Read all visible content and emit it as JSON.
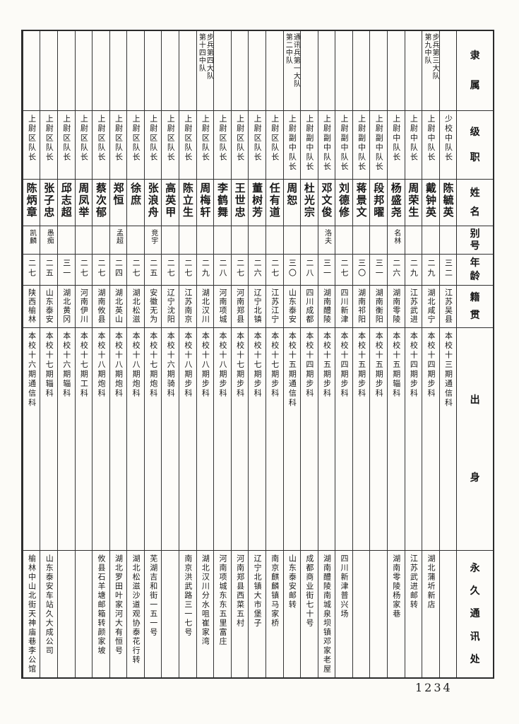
{
  "page": {
    "number": "1234",
    "ink_color": "#191919",
    "paper_color": "#fcfbf7"
  },
  "table": {
    "headers": [
      {
        "key": "affiliation",
        "label": "隶属"
      },
      {
        "key": "rank",
        "label": "级职"
      },
      {
        "key": "name",
        "label": "姓名"
      },
      {
        "key": "alias",
        "label": "别号"
      },
      {
        "key": "age",
        "label": "年龄"
      },
      {
        "key": "native_place",
        "label": "籍贯"
      },
      {
        "key": "origin",
        "label": "出身"
      },
      {
        "key": "address",
        "label": "永久通讯处"
      }
    ],
    "reading_order": "right-to-left",
    "persons": [
      {
        "affiliation": "",
        "rank": "少校中队长",
        "name": "陈毓英",
        "alias": "",
        "age": "三二",
        "native_place": "江苏吴县",
        "origin": "本校十三期通信科",
        "address": ""
      },
      {
        "affiliation": "步兵第三大队\n第九中队",
        "rank": "上尉中队长",
        "name": "戴钟英",
        "alias": "",
        "age": "二九",
        "native_place": "湖北咸宁",
        "origin": "本校十四期步科",
        "address": "湖北蒲圻新店"
      },
      {
        "affiliation": "",
        "rank": "上尉中队长",
        "name": "周荣生",
        "alias": "",
        "age": "二九",
        "native_place": "江苏武进",
        "origin": "本校十四期步科",
        "address": "江苏武进邮转"
      },
      {
        "affiliation": "",
        "rank": "上尉中队长",
        "name": "杨盛尧",
        "alias": "名林",
        "age": "二六",
        "native_place": "湖南零陵",
        "origin": "本校十五期辎科",
        "address": "湖南零陵杨家巷"
      },
      {
        "affiliation": "",
        "rank": "上尉副中队长",
        "name": "段邦曜",
        "alias": "",
        "age": "三一",
        "native_place": "湖南衡阳",
        "origin": "本校十五期步科",
        "address": ""
      },
      {
        "affiliation": "",
        "rank": "上尉副中队长",
        "name": "蒋景文",
        "alias": "",
        "age": "三〇",
        "native_place": "湖南祁阳",
        "origin": "本校十五期步科",
        "address": ""
      },
      {
        "affiliation": "",
        "rank": "上尉副中队长",
        "name": "刘德修",
        "alias": "",
        "age": "二七",
        "native_place": "四川新津",
        "origin": "本校十四期步科",
        "address": "四川新津普兴场"
      },
      {
        "affiliation": "",
        "rank": "上尉副中队长",
        "name": "邓文俊",
        "alias": "洛夫",
        "age": "三一",
        "native_place": "湖南醴陵",
        "origin": "本校十五期步科",
        "address": "湖南醴陵南城泉坝镇邓家老屋"
      },
      {
        "affiliation": "",
        "rank": "上尉副中队长",
        "name": "杜光宗",
        "alias": "",
        "age": "二八",
        "native_place": "四川成都",
        "origin": "本校十四期步科",
        "address": "成都商业街七十号"
      },
      {
        "affiliation": "通讯兵第一大队\n第二中队",
        "rank": "上尉副中队长",
        "name": "周恕",
        "alias": "",
        "age": "三〇",
        "native_place": "山东泰安",
        "origin": "本校十五期通信科",
        "address": "山东泰安邮转"
      },
      {
        "affiliation": "",
        "rank": "上尉区队长",
        "name": "任有道",
        "alias": "",
        "age": "二七",
        "native_place": "江苏江宁",
        "origin": "本校十七期步科",
        "address": "南京麒麟镇马家桥"
      },
      {
        "affiliation": "",
        "rank": "上尉区队长",
        "name": "董树芳",
        "alias": "",
        "age": "二六",
        "native_place": "辽宁北镇",
        "origin": "本校十七期步科",
        "address": "辽宁北镇大市堡子"
      },
      {
        "affiliation": "",
        "rank": "上尉区队长",
        "name": "王世忠",
        "alias": "",
        "age": "二七",
        "native_place": "河南郑县",
        "origin": "本校十七期步科",
        "address": "河南郑县西菜五村"
      },
      {
        "affiliation": "",
        "rank": "上尉区队长",
        "name": "李鹤舞",
        "alias": "",
        "age": "二八",
        "native_place": "河南项城",
        "origin": "本校十八期步科",
        "address": "河南项城东东五里富庄"
      },
      {
        "affiliation": "步兵第四大队\n第十四中队",
        "rank": "上尉区队长",
        "name": "周梅轩",
        "alias": "",
        "age": "二九",
        "native_place": "湖北汉川",
        "origin": "本校十八期步科",
        "address": "湖北汉川分水咀崔家湾"
      },
      {
        "affiliation": "",
        "rank": "上尉区队长",
        "name": "陈立生",
        "alias": "",
        "age": "二七",
        "native_place": "江苏南京",
        "origin": "本校十八期步科",
        "address": "南京洪武路三一七号"
      },
      {
        "affiliation": "",
        "rank": "上尉区队长",
        "name": "高英甲",
        "alias": "",
        "age": "二七",
        "native_place": "辽宁沈阳",
        "origin": "本校十六期骑科",
        "address": ""
      },
      {
        "affiliation": "",
        "rank": "上尉区队长",
        "name": "张浪舟",
        "alias": "竞宇",
        "age": "二五",
        "native_place": "安徽无为",
        "origin": "本校十七期炮科",
        "address": "芜湖吉和街一五一号"
      },
      {
        "affiliation": "",
        "rank": "上尉区队长",
        "name": "徐庶",
        "alias": "",
        "age": "二七",
        "native_place": "湖北松滋",
        "origin": "本校十八期炮科",
        "address": "湖北松滋沙道观协泰花行转"
      },
      {
        "affiliation": "",
        "rank": "上尉区队长",
        "name": "郑恒",
        "alias": "孟超",
        "age": "二四",
        "native_place": "湖北英山",
        "origin": "本校十八期炮科",
        "address": "湖北罗田叶家河大有恒号"
      },
      {
        "affiliation": "",
        "rank": "上尉区队长",
        "name": "蔡次郁",
        "alias": "",
        "age": "二七",
        "native_place": "湖南攸县",
        "origin": "本校十八期炮科",
        "address": "攸县石羊塘邮箱转颜家坡"
      },
      {
        "affiliation": "",
        "rank": "上尉区队长",
        "name": "周凤举",
        "alias": "",
        "age": "二七",
        "native_place": "河南伊川",
        "origin": "本校十七期工科",
        "address": ""
      },
      {
        "affiliation": "",
        "rank": "上尉区队长",
        "name": "邱志超",
        "alias": "",
        "age": "三一",
        "native_place": "湖北黄冈",
        "origin": "本校十六期辎科",
        "address": ""
      },
      {
        "affiliation": "",
        "rank": "上尉区队长",
        "name": "张子忠",
        "alias": "愚痴",
        "age": "二五",
        "native_place": "山东泰安",
        "origin": "本校十七期辎科",
        "address": "山东泰安车站久大成公司"
      },
      {
        "affiliation": "",
        "rank": "上尉区队长",
        "name": "陈炳章",
        "alias": "凯麟",
        "age": "二七",
        "native_place": "陕西榆林",
        "origin": "本校十六期通信科",
        "address": "榆林中山北街天神庙巷李公馆"
      }
    ]
  }
}
